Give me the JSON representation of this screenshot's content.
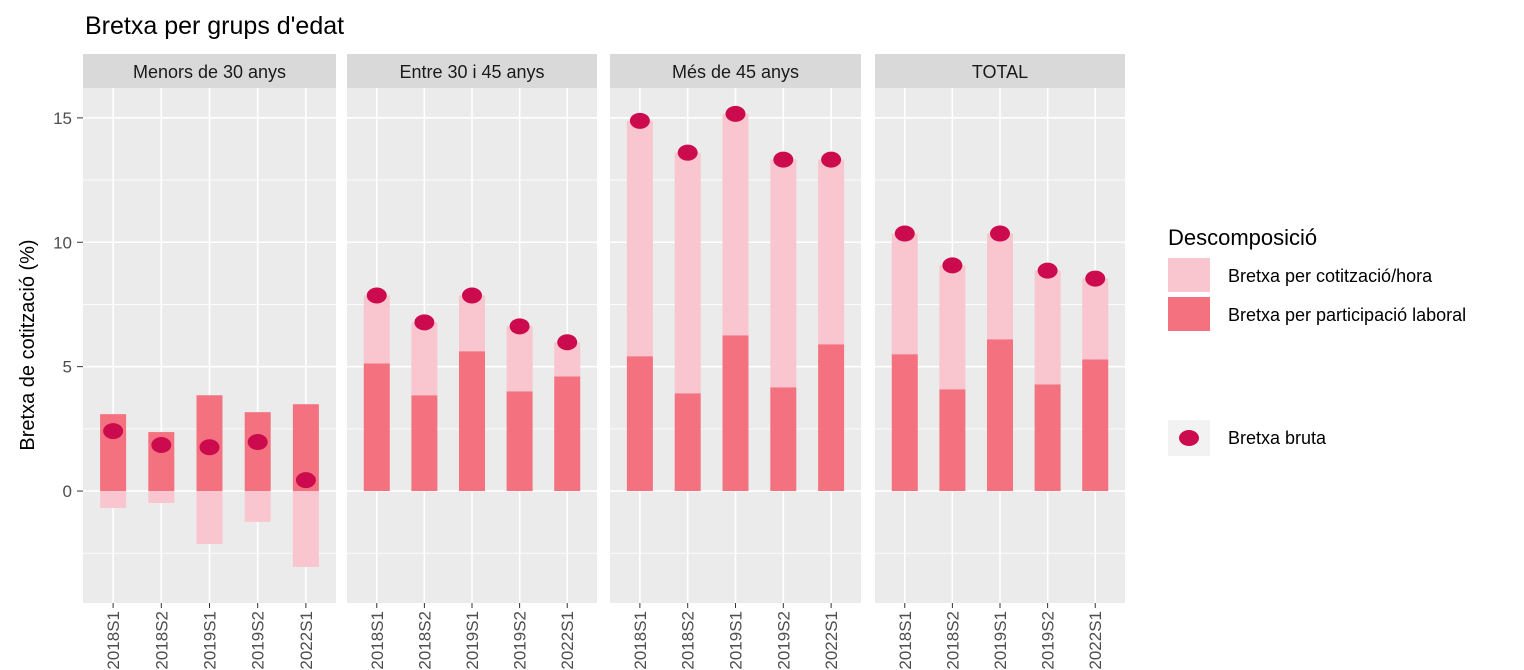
{
  "chart_data": {
    "type": "bar",
    "title": "Bretxa per grups d'edat",
    "y_label": "Bretxa de cotització (%)",
    "legend_title": "Descomposició",
    "ylim": [
      -4.5,
      16.2
    ],
    "yticks": [
      0,
      5,
      10,
      15
    ],
    "grid": true,
    "categories": [
      "2018S1",
      "2018S2",
      "2019S1",
      "2019S2",
      "2022S1"
    ],
    "series": [
      {
        "name": "Bretxa per cotització/hora",
        "color": "#f9c6cf",
        "type": "bar"
      },
      {
        "name": "Bretxa per participació laboral",
        "color": "#f4717f",
        "type": "bar"
      },
      {
        "name": "Bretxa bruta",
        "color": "#cc0a4e",
        "type": "point"
      }
    ],
    "panels": [
      {
        "label": "Menors de 30 anys",
        "series": [
          {
            "values": [
              -0.68,
              -0.48,
              -2.13,
              -1.24,
              -3.05
            ]
          },
          {
            "values": [
              3.09,
              2.37,
              3.85,
              3.17,
              3.49
            ]
          },
          {
            "values": [
              2.41,
              1.85,
              1.76,
              1.97,
              0.44
            ]
          }
        ]
      },
      {
        "label": "Entre 30 i 45 anys",
        "series": [
          {
            "values": [
              2.73,
              2.93,
              2.24,
              2.61,
              1.37
            ]
          },
          {
            "values": [
              5.13,
              3.85,
              5.62,
              4.01,
              4.61
            ]
          },
          {
            "values": [
              7.86,
              6.78,
              7.86,
              6.62,
              5.98
            ]
          }
        ]
      },
      {
        "label": "Més de 45 anys",
        "series": [
          {
            "values": [
              9.46,
              9.67,
              8.9,
              9.15,
              7.42
            ]
          },
          {
            "values": [
              5.42,
              3.93,
              6.26,
              4.17,
              5.9
            ]
          },
          {
            "values": [
              14.88,
              13.6,
              15.16,
              13.32,
              13.32
            ]
          }
        ]
      },
      {
        "label": "TOTAL",
        "series": [
          {
            "values": [
              4.85,
              4.98,
              4.25,
              4.57,
              3.25
            ]
          },
          {
            "values": [
              5.5,
              4.09,
              6.1,
              4.29,
              5.29
            ]
          },
          {
            "values": [
              10.35,
              9.07,
              10.35,
              8.86,
              8.54
            ]
          }
        ]
      }
    ]
  }
}
